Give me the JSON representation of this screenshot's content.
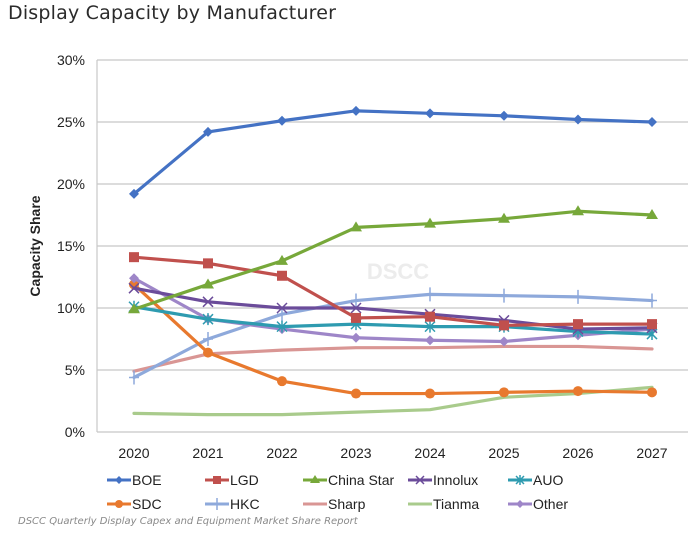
{
  "chart_data": {
    "type": "line",
    "title": "Display Capacity by Manufacturer",
    "xlabel": "",
    "ylabel": "Capacity Share",
    "x": [
      "2020",
      "2021",
      "2022",
      "2023",
      "2024",
      "2025",
      "2026",
      "2027"
    ],
    "ylim": [
      0,
      30
    ],
    "yticks": [
      0,
      5,
      10,
      15,
      20,
      25,
      30
    ],
    "ytick_labels": [
      "0%",
      "5%",
      "10%",
      "15%",
      "20%",
      "25%",
      "30%"
    ],
    "grid": "horizontal",
    "legend_position": "bottom",
    "watermark": "DSCC",
    "source": "DSCC Quarterly Display Capex and Equipment Market Share Report",
    "series": [
      {
        "name": "BOE",
        "color": "#4472C4",
        "marker": "diamond",
        "values": [
          19.2,
          24.2,
          25.1,
          25.9,
          25.7,
          25.5,
          25.2,
          25.0
        ]
      },
      {
        "name": "LGD",
        "color": "#C0504D",
        "marker": "square",
        "values": [
          14.1,
          13.6,
          12.6,
          9.2,
          9.3,
          8.6,
          8.7,
          8.7
        ]
      },
      {
        "name": "China Star",
        "color": "#77A83A",
        "marker": "triangle",
        "values": [
          9.9,
          11.9,
          13.8,
          16.5,
          16.8,
          17.2,
          17.8,
          17.5
        ]
      },
      {
        "name": "Innolux",
        "color": "#6B4C9A",
        "marker": "x",
        "values": [
          11.6,
          10.5,
          10.0,
          10.0,
          9.5,
          9.0,
          8.3,
          8.4
        ]
      },
      {
        "name": "AUO",
        "color": "#2E9BB0",
        "marker": "asterisk",
        "values": [
          10.1,
          9.1,
          8.5,
          8.7,
          8.5,
          8.5,
          8.1,
          7.9
        ]
      },
      {
        "name": "SDC",
        "color": "#E8792E",
        "marker": "circle",
        "values": [
          11.9,
          6.4,
          4.1,
          3.1,
          3.1,
          3.2,
          3.3,
          3.2
        ]
      },
      {
        "name": "HKC",
        "color": "#8EA9DB",
        "marker": "plus",
        "values": [
          4.4,
          7.5,
          9.5,
          10.6,
          11.1,
          11.0,
          10.9,
          10.6
        ]
      },
      {
        "name": "Sharp",
        "color": "#D99694",
        "marker": "none",
        "values": [
          4.9,
          6.3,
          6.6,
          6.8,
          6.8,
          6.9,
          6.9,
          6.7
        ]
      },
      {
        "name": "Tianma",
        "color": "#A9CB8C",
        "marker": "none",
        "values": [
          1.5,
          1.4,
          1.4,
          1.6,
          1.8,
          2.8,
          3.1,
          3.6
        ]
      },
      {
        "name": "Other",
        "color": "#9E86C8",
        "marker": "diamond",
        "values": [
          12.4,
          9.1,
          8.3,
          7.6,
          7.4,
          7.3,
          7.8,
          8.3
        ]
      }
    ]
  }
}
